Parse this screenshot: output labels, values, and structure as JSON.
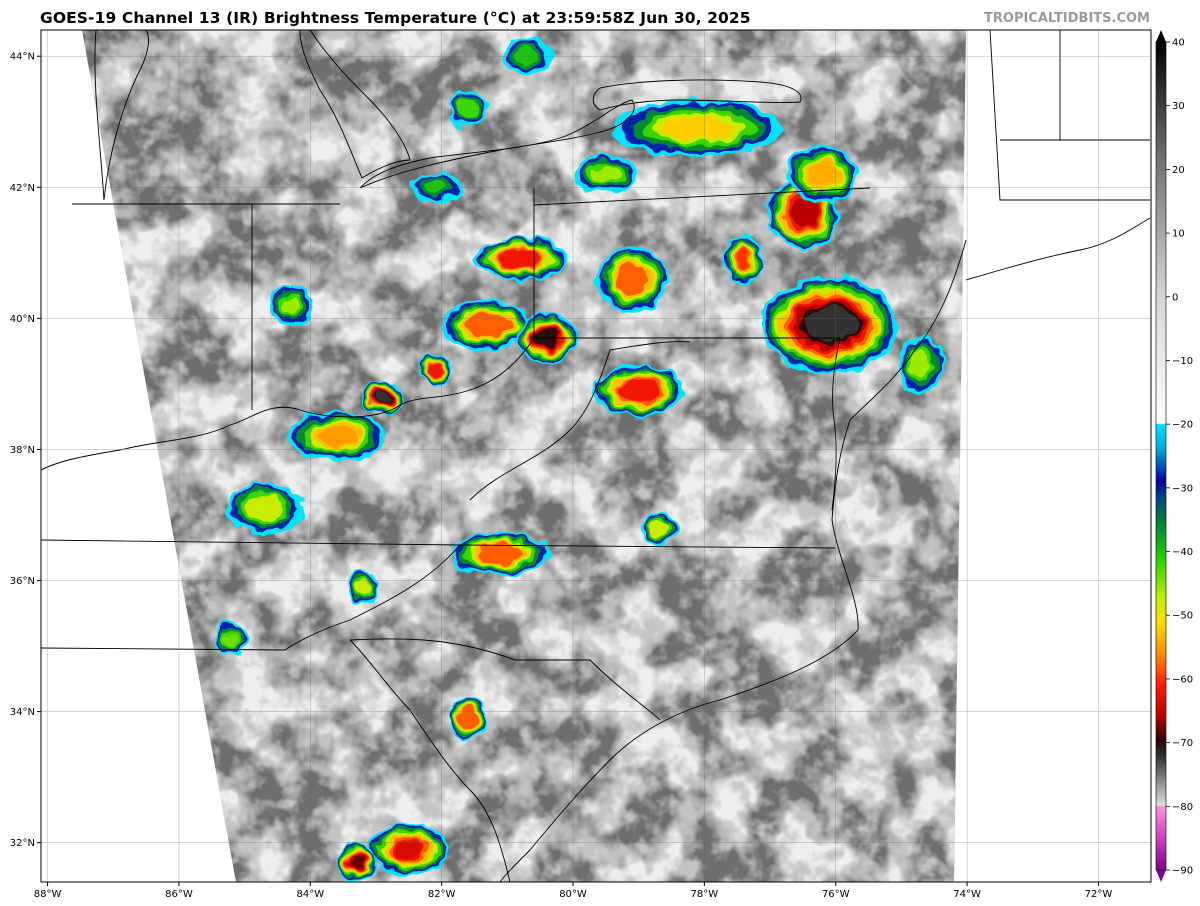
{
  "header": {
    "title": "GOES-19 Channel 13 (IR) Brightness Temperature (°C) at 23:59:58Z Jun 30, 2025",
    "credit": "TROPICALTIDBITS.COM"
  },
  "map": {
    "lon_range": [
      -88.1,
      -71.2
    ],
    "lat_range": [
      31.4,
      44.4
    ],
    "lon_ticks": [
      -88,
      -86,
      -84,
      -82,
      -80,
      -78,
      -76,
      -74,
      -72
    ],
    "lon_tick_labels": [
      "88°W",
      "86°W",
      "84°W",
      "82°W",
      "80°W",
      "78°W",
      "76°W",
      "74°W",
      "72°W"
    ],
    "lat_ticks": [
      32,
      34,
      36,
      38,
      40,
      42,
      44
    ],
    "lat_tick_labels": [
      "32°N",
      "34°N",
      "36°N",
      "38°N",
      "40°N",
      "42°N",
      "44°N"
    ],
    "colors": {
      "clear_ground": "#6e6e6e",
      "cloud_tops": "#d8d8d8",
      "outside_scan": "#ffffff"
    },
    "convective_cells": [
      {
        "lon": -76.1,
        "lat": 39.9,
        "rx": 1.9,
        "ry": 1.3,
        "peak": -72
      },
      {
        "lon": -80.8,
        "lat": 40.9,
        "rx": 1.2,
        "ry": 0.5,
        "peak": -62
      },
      {
        "lon": -79.1,
        "lat": 40.6,
        "rx": 0.9,
        "ry": 0.8,
        "peak": -58
      },
      {
        "lon": -77.4,
        "lat": 40.9,
        "rx": 0.4,
        "ry": 0.6,
        "peak": -60
      },
      {
        "lon": -76.5,
        "lat": 41.6,
        "rx": 0.9,
        "ry": 0.9,
        "peak": -66
      },
      {
        "lon": -78.1,
        "lat": 42.9,
        "rx": 2.4,
        "ry": 0.7,
        "peak": -52
      },
      {
        "lon": -76.2,
        "lat": 42.2,
        "rx": 0.9,
        "ry": 0.7,
        "peak": -54
      },
      {
        "lon": -81.3,
        "lat": 39.9,
        "rx": 1.2,
        "ry": 0.6,
        "peak": -58
      },
      {
        "lon": -80.4,
        "lat": 39.7,
        "rx": 0.7,
        "ry": 0.6,
        "peak": -70
      },
      {
        "lon": -79.0,
        "lat": 38.9,
        "rx": 1.2,
        "ry": 0.6,
        "peak": -62
      },
      {
        "lon": -82.9,
        "lat": 38.8,
        "rx": 0.5,
        "ry": 0.3,
        "peak": -72
      },
      {
        "lon": -83.6,
        "lat": 38.2,
        "rx": 1.3,
        "ry": 0.6,
        "peak": -55
      },
      {
        "lon": -84.7,
        "lat": 37.1,
        "rx": 1.0,
        "ry": 0.6,
        "peak": -48
      },
      {
        "lon": -81.1,
        "lat": 36.4,
        "rx": 1.3,
        "ry": 0.5,
        "peak": -58
      },
      {
        "lon": -78.7,
        "lat": 36.8,
        "rx": 0.4,
        "ry": 0.3,
        "peak": -48
      },
      {
        "lon": -82.1,
        "lat": 39.2,
        "rx": 0.3,
        "ry": 0.3,
        "peak": -62
      },
      {
        "lon": -84.3,
        "lat": 40.2,
        "rx": 0.5,
        "ry": 0.4,
        "peak": -46
      },
      {
        "lon": -74.7,
        "lat": 39.3,
        "rx": 0.5,
        "ry": 0.7,
        "peak": -46
      },
      {
        "lon": -81.6,
        "lat": 33.9,
        "rx": 0.4,
        "ry": 0.5,
        "peak": -58
      },
      {
        "lon": -82.5,
        "lat": 31.9,
        "rx": 1.0,
        "ry": 0.6,
        "peak": -64
      },
      {
        "lon": -83.3,
        "lat": 31.7,
        "rx": 0.4,
        "ry": 0.4,
        "peak": -68
      },
      {
        "lon": -83.2,
        "lat": 35.9,
        "rx": 0.3,
        "ry": 0.3,
        "peak": -48
      },
      {
        "lon": -85.2,
        "lat": 35.1,
        "rx": 0.3,
        "ry": 0.3,
        "peak": -44
      },
      {
        "lon": -82.1,
        "lat": 42.0,
        "rx": 0.6,
        "ry": 0.3,
        "peak": -40
      },
      {
        "lon": -79.5,
        "lat": 42.2,
        "rx": 0.8,
        "ry": 0.4,
        "peak": -46
      },
      {
        "lon": -81.6,
        "lat": 43.2,
        "rx": 0.4,
        "ry": 0.4,
        "peak": -42
      },
      {
        "lon": -80.7,
        "lat": 44.0,
        "rx": 0.6,
        "ry": 0.4,
        "peak": -40
      }
    ]
  },
  "colorbar": {
    "min": -90,
    "max": 40,
    "ticks": [
      40,
      30,
      20,
      10,
      0,
      -10,
      -20,
      -30,
      -40,
      -50,
      -60,
      -70,
      -80,
      -90
    ],
    "tick_labels": [
      "40",
      "30",
      "20",
      "10",
      "0",
      "−10",
      "−20",
      "−30",
      "−40",
      "−50",
      "−60",
      "−70",
      "−80",
      "−90"
    ],
    "stops": [
      {
        "value": 40,
        "color": "#000000"
      },
      {
        "value": 22,
        "color": "#707070"
      },
      {
        "value": 0,
        "color": "#d6d6d6"
      },
      {
        "value": -19.9,
        "color": "#ffffff"
      },
      {
        "value": -20,
        "color": "#00e5ff"
      },
      {
        "value": -24,
        "color": "#00a8d8"
      },
      {
        "value": -29,
        "color": "#0000a0"
      },
      {
        "value": -31,
        "color": "#003c8c"
      },
      {
        "value": -35,
        "color": "#007a3c"
      },
      {
        "value": -41,
        "color": "#22d000"
      },
      {
        "value": -47,
        "color": "#b8f000"
      },
      {
        "value": -51,
        "color": "#ffe000"
      },
      {
        "value": -56,
        "color": "#ff8c00"
      },
      {
        "value": -61,
        "color": "#ff1a00"
      },
      {
        "value": -66,
        "color": "#b80000"
      },
      {
        "value": -69.5,
        "color": "#2a0000"
      },
      {
        "value": -72,
        "color": "#303030"
      },
      {
        "value": -79.9,
        "color": "#e0e0e0"
      },
      {
        "value": -80,
        "color": "#ff90e0"
      },
      {
        "value": -85,
        "color": "#d040c0"
      },
      {
        "value": -90,
        "color": "#800090"
      }
    ]
  }
}
